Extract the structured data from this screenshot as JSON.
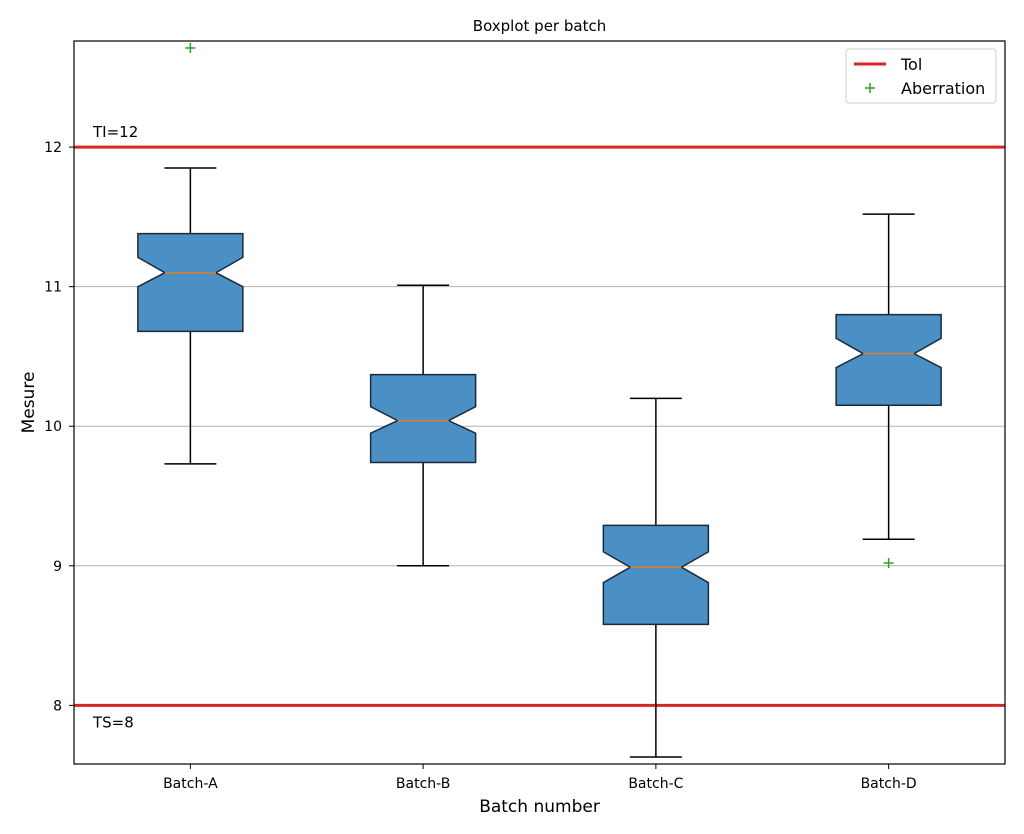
{
  "chart_data": {
    "type": "boxplot",
    "title": "Boxplot per batch",
    "xlabel": "Batch number",
    "ylabel": "Mesure",
    "ylim": [
      7.58,
      12.76
    ],
    "yticks": [
      8,
      9,
      10,
      11,
      12
    ],
    "grid": "y",
    "notched": true,
    "categories": [
      "Batch-A",
      "Batch-B",
      "Batch-C",
      "Batch-D"
    ],
    "boxes": [
      {
        "name": "Batch-A",
        "whislo": 9.73,
        "q1": 10.68,
        "med": 11.1,
        "q3": 11.38,
        "whishi": 11.85,
        "notch_low": 11.0,
        "notch_high": 11.21,
        "fliers": [
          12.71
        ]
      },
      {
        "name": "Batch-B",
        "whislo": 9.0,
        "q1": 9.74,
        "med": 10.04,
        "q3": 10.37,
        "whishi": 11.01,
        "notch_low": 9.95,
        "notch_high": 10.14,
        "fliers": []
      },
      {
        "name": "Batch-C",
        "whislo": 7.63,
        "q1": 8.58,
        "med": 8.99,
        "q3": 9.29,
        "whishi": 10.2,
        "notch_low": 8.88,
        "notch_high": 9.1,
        "fliers": []
      },
      {
        "name": "Batch-D",
        "whislo": 9.19,
        "q1": 10.15,
        "med": 10.52,
        "q3": 10.8,
        "whishi": 11.52,
        "notch_low": 10.42,
        "notch_high": 10.63,
        "fliers": [
          9.02
        ]
      }
    ],
    "reference_lines": [
      {
        "value": 12,
        "label": "TI=12",
        "label_position": "above"
      },
      {
        "value": 8,
        "label": "TS=8",
        "label_position": "below"
      }
    ],
    "legend": {
      "placement": "top-right",
      "entries": [
        {
          "label": "Tol",
          "kind": "line"
        },
        {
          "label": "Aberration",
          "kind": "marker"
        }
      ]
    },
    "colors": {
      "box_fill": "#4a90c4",
      "box_edge": "#1a2a3a",
      "median": "#e07b20",
      "tolerance": "#d62728",
      "flier": "#2ca02c",
      "grid": "#b0b0b0"
    }
  }
}
